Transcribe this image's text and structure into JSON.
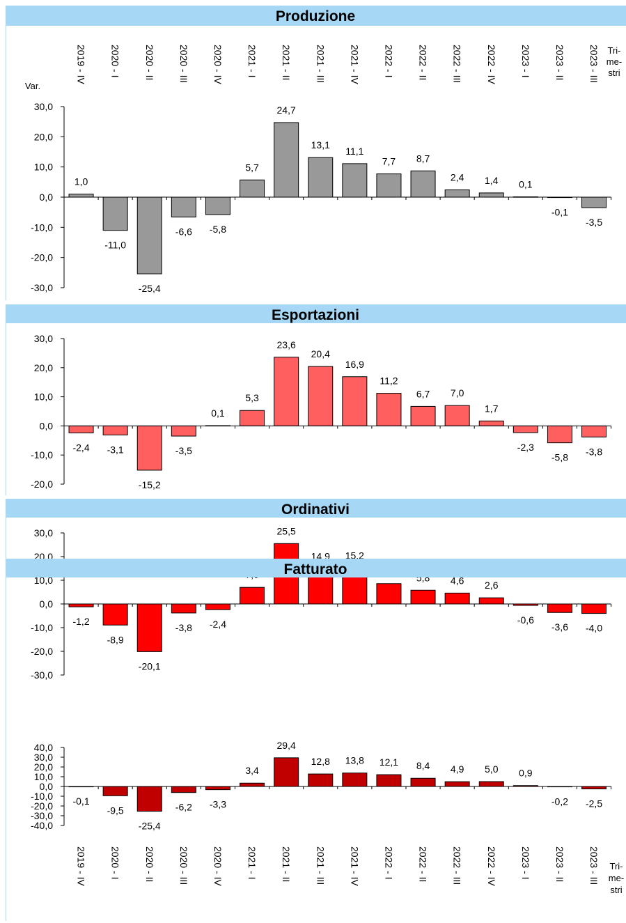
{
  "categories": [
    "2019 - IV",
    "2020 - I",
    "2020 - II",
    "2020 - III",
    "2020 - IV",
    "2021 - I",
    "2021 - II",
    "2021 - III",
    "2021 - IV",
    "2022 - I",
    "2022 - II",
    "2022 - III",
    "2022 - IV",
    "2023 - I",
    "2023 - II",
    "2023 - III"
  ],
  "labels": {
    "var": "Var.",
    "trimestri": [
      "Tri-",
      "me-",
      "stri"
    ]
  },
  "chart_data": [
    {
      "type": "bar",
      "title": "Produzione",
      "color": "#999999",
      "ylim": [
        -30,
        30
      ],
      "yticks": [
        30,
        20,
        10,
        0,
        -10,
        -20,
        -30
      ],
      "ytick_labels": [
        "30,0",
        "20,0",
        "10,0",
        "0,0",
        "-10,0",
        "-20,0",
        "-30,0"
      ],
      "values": [
        1.0,
        -11.0,
        -25.4,
        -6.6,
        -5.8,
        5.7,
        24.7,
        13.1,
        11.1,
        7.7,
        8.7,
        2.4,
        1.4,
        0.1,
        -0.1,
        -3.5
      ],
      "value_labels": [
        "1,0",
        "-11,0",
        "-25,4",
        "-6,6",
        "-5,8",
        "5,7",
        "24,7",
        "13,1",
        "11,1",
        "7,7",
        "8,7",
        "2,4",
        "1,4",
        "0,1",
        "-0,1",
        "-3,5"
      ]
    },
    {
      "type": "bar",
      "title": "Esportazioni",
      "color": "#ff5f5f",
      "ylim": [
        -20,
        30
      ],
      "yticks": [
        30,
        20,
        10,
        0,
        -10,
        -20
      ],
      "ytick_labels": [
        "30,0",
        "20,0",
        "10,0",
        "0,0",
        "-10,0",
        "-20,0"
      ],
      "values": [
        -2.4,
        -3.1,
        -15.2,
        -3.5,
        0.1,
        5.3,
        23.6,
        20.4,
        16.9,
        11.2,
        6.7,
        7.0,
        1.7,
        -2.3,
        -5.8,
        -3.8
      ],
      "value_labels": [
        "-2,4",
        "-3,1",
        "-15,2",
        "-3,5",
        "0,1",
        "5,3",
        "23,6",
        "20,4",
        "16,9",
        "11,2",
        "6,7",
        "7,0",
        "1,7",
        "-2,3",
        "-5,8",
        "-3,8"
      ]
    },
    {
      "type": "bar",
      "title": "Ordinativi",
      "color": "#ff0000",
      "ylim": [
        -30,
        30
      ],
      "yticks": [
        30,
        20,
        10,
        0,
        -10,
        -20,
        -30
      ],
      "ytick_labels": [
        "30,0",
        "20,0",
        "10,0",
        "0,0",
        "-10,0",
        "-20,0",
        "-30,0"
      ],
      "values": [
        -1.2,
        -8.9,
        -20.1,
        -3.8,
        -2.4,
        7.0,
        25.5,
        14.9,
        15.2,
        8.6,
        5.8,
        4.6,
        2.6,
        -0.6,
        -3.6,
        -4.0
      ],
      "value_labels": [
        "-1,2",
        "-8,9",
        "-20,1",
        "-3,8",
        "-2,4",
        "7,0",
        "25,5",
        "14,9",
        "15,2",
        "8,6",
        "5,8",
        "4,6",
        "2,6",
        "-0,6",
        "-3,6",
        "-4,0"
      ]
    },
    {
      "type": "bar",
      "title": "Fatturato",
      "color": "#c00000",
      "ylim": [
        -40,
        40
      ],
      "yticks": [
        40,
        30,
        20,
        10,
        0,
        -10,
        -20,
        -30,
        -40
      ],
      "ytick_labels": [
        "40,0",
        "30,0",
        "20,0",
        "10,0",
        "0,0",
        "-10,0",
        "-20,0",
        "-30,0",
        "-40,0"
      ],
      "values": [
        -0.1,
        -9.5,
        -25.4,
        -6.2,
        -3.3,
        3.4,
        29.4,
        12.8,
        13.8,
        12.1,
        8.4,
        4.9,
        5.0,
        0.9,
        -0.2,
        -2.5
      ],
      "value_labels": [
        "-0,1",
        "-9,5",
        "-25,4",
        "-6,2",
        "-3,3",
        "3,4",
        "29,4",
        "12,8",
        "13,8",
        "12,1",
        "8,4",
        "4,9",
        "5,0",
        "0,9",
        "-0,2",
        "-2,5"
      ]
    }
  ]
}
